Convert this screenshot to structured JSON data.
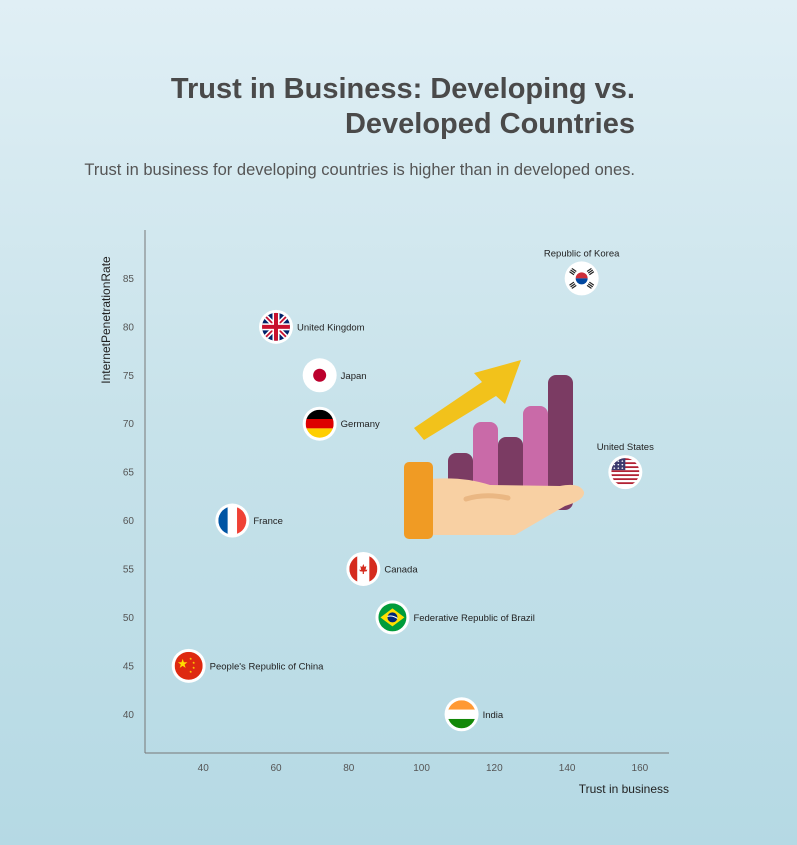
{
  "title_line1": "Trust in Business: Developing vs.",
  "title_line2": "Developed Countries",
  "subtitle": "Trust in business for developing countries is higher than in developed ones.",
  "chart_data": {
    "type": "scatter",
    "title": "Trust in Business: Developing vs. Developed Countries",
    "subtitle": "Trust in business for developing countries is higher than in developed ones.",
    "xlabel": "Trust in business",
    "ylabel": "InternetPenetrationRate",
    "xlim": [
      24,
      168
    ],
    "ylim": [
      36,
      90
    ],
    "xticks": [
      40,
      60,
      80,
      100,
      120,
      140,
      160
    ],
    "yticks": [
      40,
      45,
      50,
      55,
      60,
      65,
      70,
      75,
      80,
      85
    ],
    "points": [
      {
        "label": "Republic of Korea",
        "x": 144,
        "y": 85,
        "flag": "korea-flag-icon",
        "label_pos": "above"
      },
      {
        "label": "United Kingdom",
        "x": 60,
        "y": 80,
        "flag": "uk-flag-icon",
        "label_pos": "right"
      },
      {
        "label": "Japan",
        "x": 72,
        "y": 75,
        "flag": "japan-flag-icon",
        "label_pos": "right"
      },
      {
        "label": "Germany",
        "x": 72,
        "y": 70,
        "flag": "germany-flag-icon",
        "label_pos": "right"
      },
      {
        "label": "United States",
        "x": 156,
        "y": 65,
        "flag": "usa-flag-icon",
        "label_pos": "above"
      },
      {
        "label": "France",
        "x": 48,
        "y": 60,
        "flag": "france-flag-icon",
        "label_pos": "right"
      },
      {
        "label": "Canada",
        "x": 84,
        "y": 55,
        "flag": "canada-flag-icon",
        "label_pos": "right"
      },
      {
        "label": "Federative Republic of Brazil",
        "x": 92,
        "y": 50,
        "flag": "brazil-flag-icon",
        "label_pos": "right"
      },
      {
        "label": "People's Republic of China",
        "x": 36,
        "y": 45,
        "flag": "china-flag-icon",
        "label_pos": "right"
      },
      {
        "label": "India",
        "x": 111,
        "y": 40,
        "flag": "india-flag-icon",
        "label_pos": "right"
      }
    ],
    "grid": false,
    "legend": "none"
  },
  "illustration": {
    "name": "hand-holding-bar-chart-icon"
  }
}
